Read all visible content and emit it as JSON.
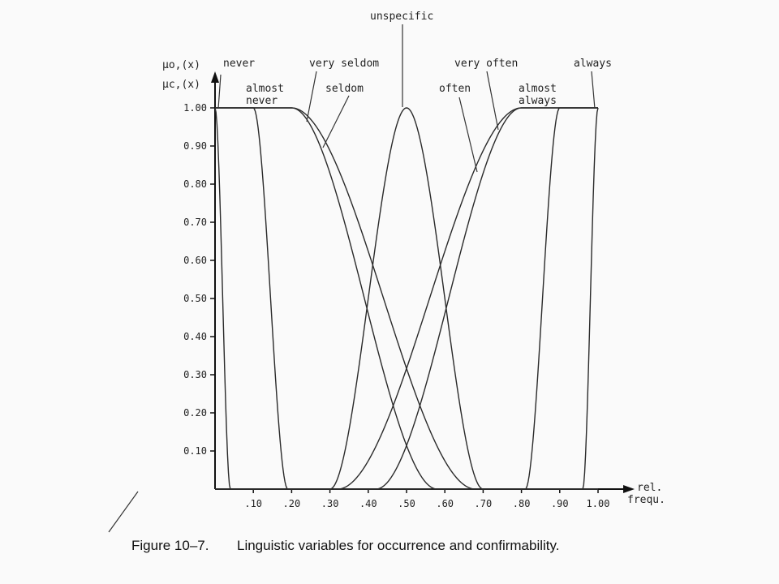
{
  "chart_data": {
    "type": "line",
    "ylabel_top": "μo,(x)",
    "ylabel_bottom": "μc,(x)",
    "xlabel_line1": "rel.",
    "xlabel_line2": "frequ.",
    "xlim": [
      0,
      1.0
    ],
    "ylim": [
      0,
      1.0
    ],
    "grid": false,
    "y_ticks": [
      {
        "value": 1.0,
        "label": "1.00"
      },
      {
        "value": 0.9,
        "label": "0.90"
      },
      {
        "value": 0.8,
        "label": "0.80"
      },
      {
        "value": 0.7,
        "label": "0.70"
      },
      {
        "value": 0.6,
        "label": "0.60"
      },
      {
        "value": 0.5,
        "label": "0.50"
      },
      {
        "value": 0.4,
        "label": "0.40"
      },
      {
        "value": 0.3,
        "label": "0.30"
      },
      {
        "value": 0.2,
        "label": "0.20"
      },
      {
        "value": 0.1,
        "label": "0.10"
      }
    ],
    "x_ticks": [
      {
        "value": 0.1,
        "label": ".10"
      },
      {
        "value": 0.2,
        "label": ".20"
      },
      {
        "value": 0.3,
        "label": ".30"
      },
      {
        "value": 0.4,
        "label": ".40"
      },
      {
        "value": 0.5,
        "label": ".50"
      },
      {
        "value": 0.6,
        "label": ".60"
      },
      {
        "value": 0.7,
        "label": ".70"
      },
      {
        "value": 0.8,
        "label": ".80"
      },
      {
        "value": 0.9,
        "label": ".90"
      },
      {
        "value": 1.0,
        "label": "1.00"
      }
    ],
    "series": [
      {
        "name": "never",
        "shape": "falling",
        "plateau_end": 0.0,
        "zero_at": 0.04
      },
      {
        "name": "almost never",
        "shape": "falling",
        "plateau_end": 0.1,
        "zero_at": 0.19
      },
      {
        "name": "very seldom",
        "shape": "falling",
        "plateau_end": 0.2,
        "zero_at": 0.58
      },
      {
        "name": "seldom",
        "shape": "falling",
        "plateau_end": 0.2,
        "zero_at": 0.68
      },
      {
        "name": "unspecific",
        "shape": "bell",
        "start": 0.3,
        "peak": 0.5,
        "end": 0.7
      },
      {
        "name": "often",
        "shape": "rising",
        "zero_at": 0.32,
        "plateau_start": 0.8
      },
      {
        "name": "very often",
        "shape": "rising",
        "zero_at": 0.42,
        "plateau_start": 0.8
      },
      {
        "name": "almost always",
        "shape": "rising",
        "zero_at": 0.81,
        "plateau_start": 0.9
      },
      {
        "name": "always",
        "shape": "rising",
        "zero_at": 0.96,
        "plateau_start": 1.0
      }
    ],
    "labels": {
      "never": "never",
      "almost_never_1": "almost",
      "almost_never_2": "never",
      "very_seldom": "very seldom",
      "seldom": "seldom",
      "unspecific": "unspecific",
      "often": "often",
      "very_often": "very often",
      "almost_always_1": "almost",
      "almost_always_2": "always",
      "always": "always"
    }
  },
  "caption": {
    "number": "Figure 10–7.",
    "text": "Linguistic variables for occurrence and confirmability."
  }
}
